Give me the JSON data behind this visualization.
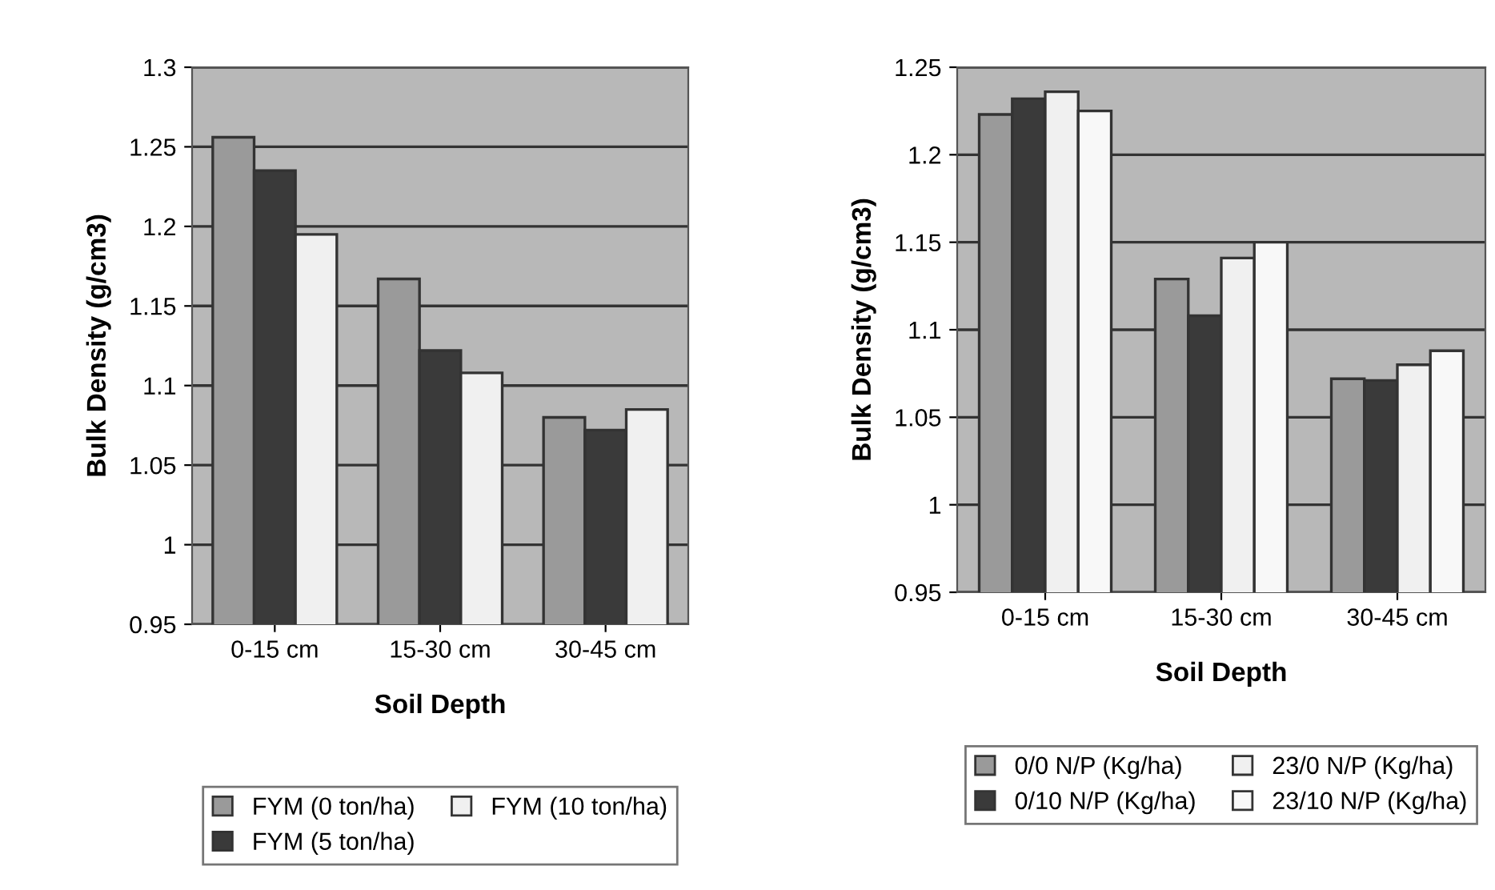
{
  "chart_data": [
    {
      "type": "bar",
      "xlabel": "Soil Depth",
      "ylabel": "Bulk Density (g/cm3)",
      "categories": [
        "0-15 cm",
        "15-30 cm",
        "30-45 cm"
      ],
      "series": [
        {
          "name": "FYM (0 ton/ha)",
          "color": "#9a9a9a",
          "values": [
            1.256,
            1.167,
            1.08
          ]
        },
        {
          "name": "FYM (5 ton/ha)",
          "color": "#3a3a3a",
          "values": [
            1.235,
            1.122,
            1.072
          ]
        },
        {
          "name": "FYM (10 ton/ha)",
          "color": "#f0f0f0",
          "values": [
            1.195,
            1.108,
            1.085
          ]
        }
      ],
      "ylim": [
        0.95,
        1.3
      ],
      "yticks": [
        0.95,
        1,
        1.05,
        1.1,
        1.15,
        1.2,
        1.25,
        1.3
      ],
      "grid": "y",
      "legend": "bottom"
    },
    {
      "type": "bar",
      "xlabel": "Soil Depth",
      "ylabel": "Bulk Density (g/cm3)",
      "categories": [
        "0-15 cm",
        "15-30 cm",
        "30-45 cm"
      ],
      "series": [
        {
          "name": "0/0 N/P (Kg/ha)",
          "color": "#9a9a9a",
          "values": [
            1.223,
            1.129,
            1.072
          ]
        },
        {
          "name": "0/10 N/P (Kg/ha)",
          "color": "#3a3a3a",
          "values": [
            1.232,
            1.108,
            1.071
          ]
        },
        {
          "name": "23/0 N/P (Kg/ha)",
          "color": "#f0f0f0",
          "values": [
            1.236,
            1.141,
            1.08
          ]
        },
        {
          "name": "23/10 N/P (Kg/ha)",
          "color": "#f8f8f8",
          "values": [
            1.225,
            1.15,
            1.088
          ]
        }
      ],
      "ylim": [
        0.95,
        1.25
      ],
      "yticks": [
        0.95,
        1,
        1.05,
        1.1,
        1.15,
        1.2,
        1.25
      ],
      "grid": "y",
      "legend": "bottom"
    }
  ]
}
